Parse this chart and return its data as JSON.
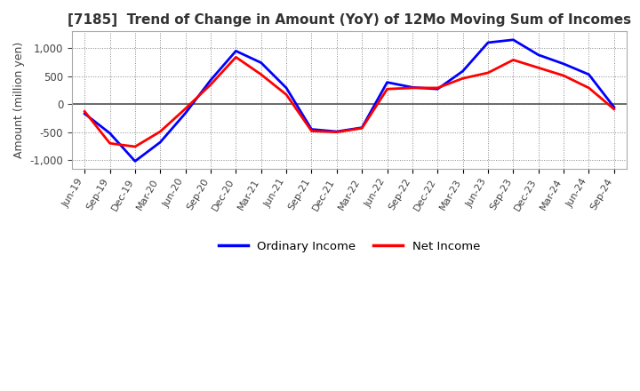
{
  "title": "[7185]  Trend of Change in Amount (YoY) of 12Mo Moving Sum of Incomes",
  "ylabel": "Amount (million yen)",
  "ylim": [
    -1150,
    1300
  ],
  "yticks": [
    -1000,
    -500,
    0,
    500,
    1000
  ],
  "legend": [
    "Ordinary Income",
    "Net Income"
  ],
  "line_colors": [
    "#0000ff",
    "#ff0000"
  ],
  "background_color": "#ffffff",
  "x_labels": [
    "Jun-19",
    "Sep-19",
    "Dec-19",
    "Mar-20",
    "Jun-20",
    "Sep-20",
    "Dec-20",
    "Mar-21",
    "Jun-21",
    "Sep-21",
    "Dec-21",
    "Mar-22",
    "Jun-22",
    "Sep-22",
    "Dec-22",
    "Mar-23",
    "Jun-23",
    "Sep-23",
    "Dec-23",
    "Mar-24",
    "Jun-24",
    "Sep-24"
  ],
  "ordinary_income": [
    -170,
    -520,
    -1020,
    -680,
    -160,
    430,
    950,
    740,
    290,
    -450,
    -490,
    -420,
    390,
    300,
    270,
    590,
    1100,
    1150,
    880,
    720,
    530,
    -55
  ],
  "net_income": [
    -130,
    -700,
    -760,
    -490,
    -80,
    350,
    840,
    530,
    170,
    -480,
    -500,
    -430,
    270,
    290,
    290,
    460,
    560,
    790,
    650,
    510,
    290,
    -90
  ]
}
